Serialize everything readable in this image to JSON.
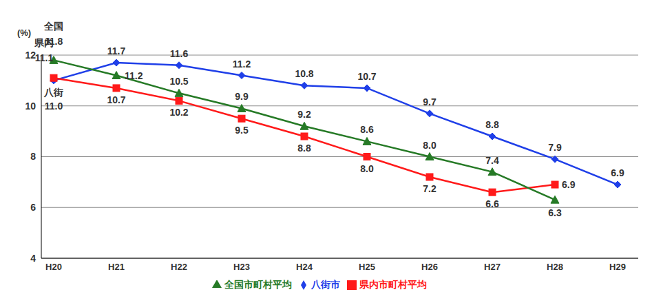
{
  "chart_data": {
    "type": "line",
    "y_label": "(%)",
    "categories": [
      "H20",
      "H21",
      "H22",
      "H23",
      "H24",
      "H25",
      "H26",
      "H27",
      "H28",
      "H29"
    ],
    "ylim": [
      4,
      12
    ],
    "yticks": [
      4,
      6,
      8,
      10,
      12
    ],
    "grid": true,
    "legend": "bottom",
    "data_labels": true,
    "series": [
      {
        "name": "八街市",
        "color": "#1f3fe8",
        "marker": "diamond",
        "values": [
          11.0,
          11.7,
          11.6,
          11.2,
          10.8,
          10.7,
          9.7,
          8.8,
          7.9,
          6.9
        ],
        "value_labels": [
          "11.0",
          "11.7",
          "11.6",
          "11.2",
          "10.8",
          "10.7",
          "9.7",
          "8.8",
          "7.9",
          "6.9"
        ]
      },
      {
        "name": "県内市町村平均",
        "color": "#ff1a1a",
        "marker": "square",
        "values": [
          11.1,
          10.7,
          10.2,
          9.5,
          8.8,
          8.0,
          7.2,
          6.6,
          6.9,
          null
        ],
        "value_labels": [
          "11.1",
          "10.7",
          "10.2",
          "9.5",
          "8.8",
          "8.0",
          "7.2",
          "6.6",
          "6.9",
          null
        ]
      },
      {
        "name": "全国市町村平均",
        "color": "#267a26",
        "marker": "triangle",
        "values": [
          11.8,
          11.2,
          10.5,
          9.9,
          9.2,
          8.6,
          8.0,
          7.4,
          6.3,
          null
        ],
        "value_labels": [
          "11.8",
          "11.2",
          "10.5",
          "9.9",
          "9.2",
          "8.6",
          "8.0",
          "7.4",
          "6.3",
          null
        ]
      }
    ],
    "annotations": [
      {
        "text": "全国",
        "series": "全国市町村平均"
      },
      {
        "text": "県内",
        "series": "県内市町村平均"
      },
      {
        "text": "八街",
        "series": "八街市"
      }
    ]
  }
}
